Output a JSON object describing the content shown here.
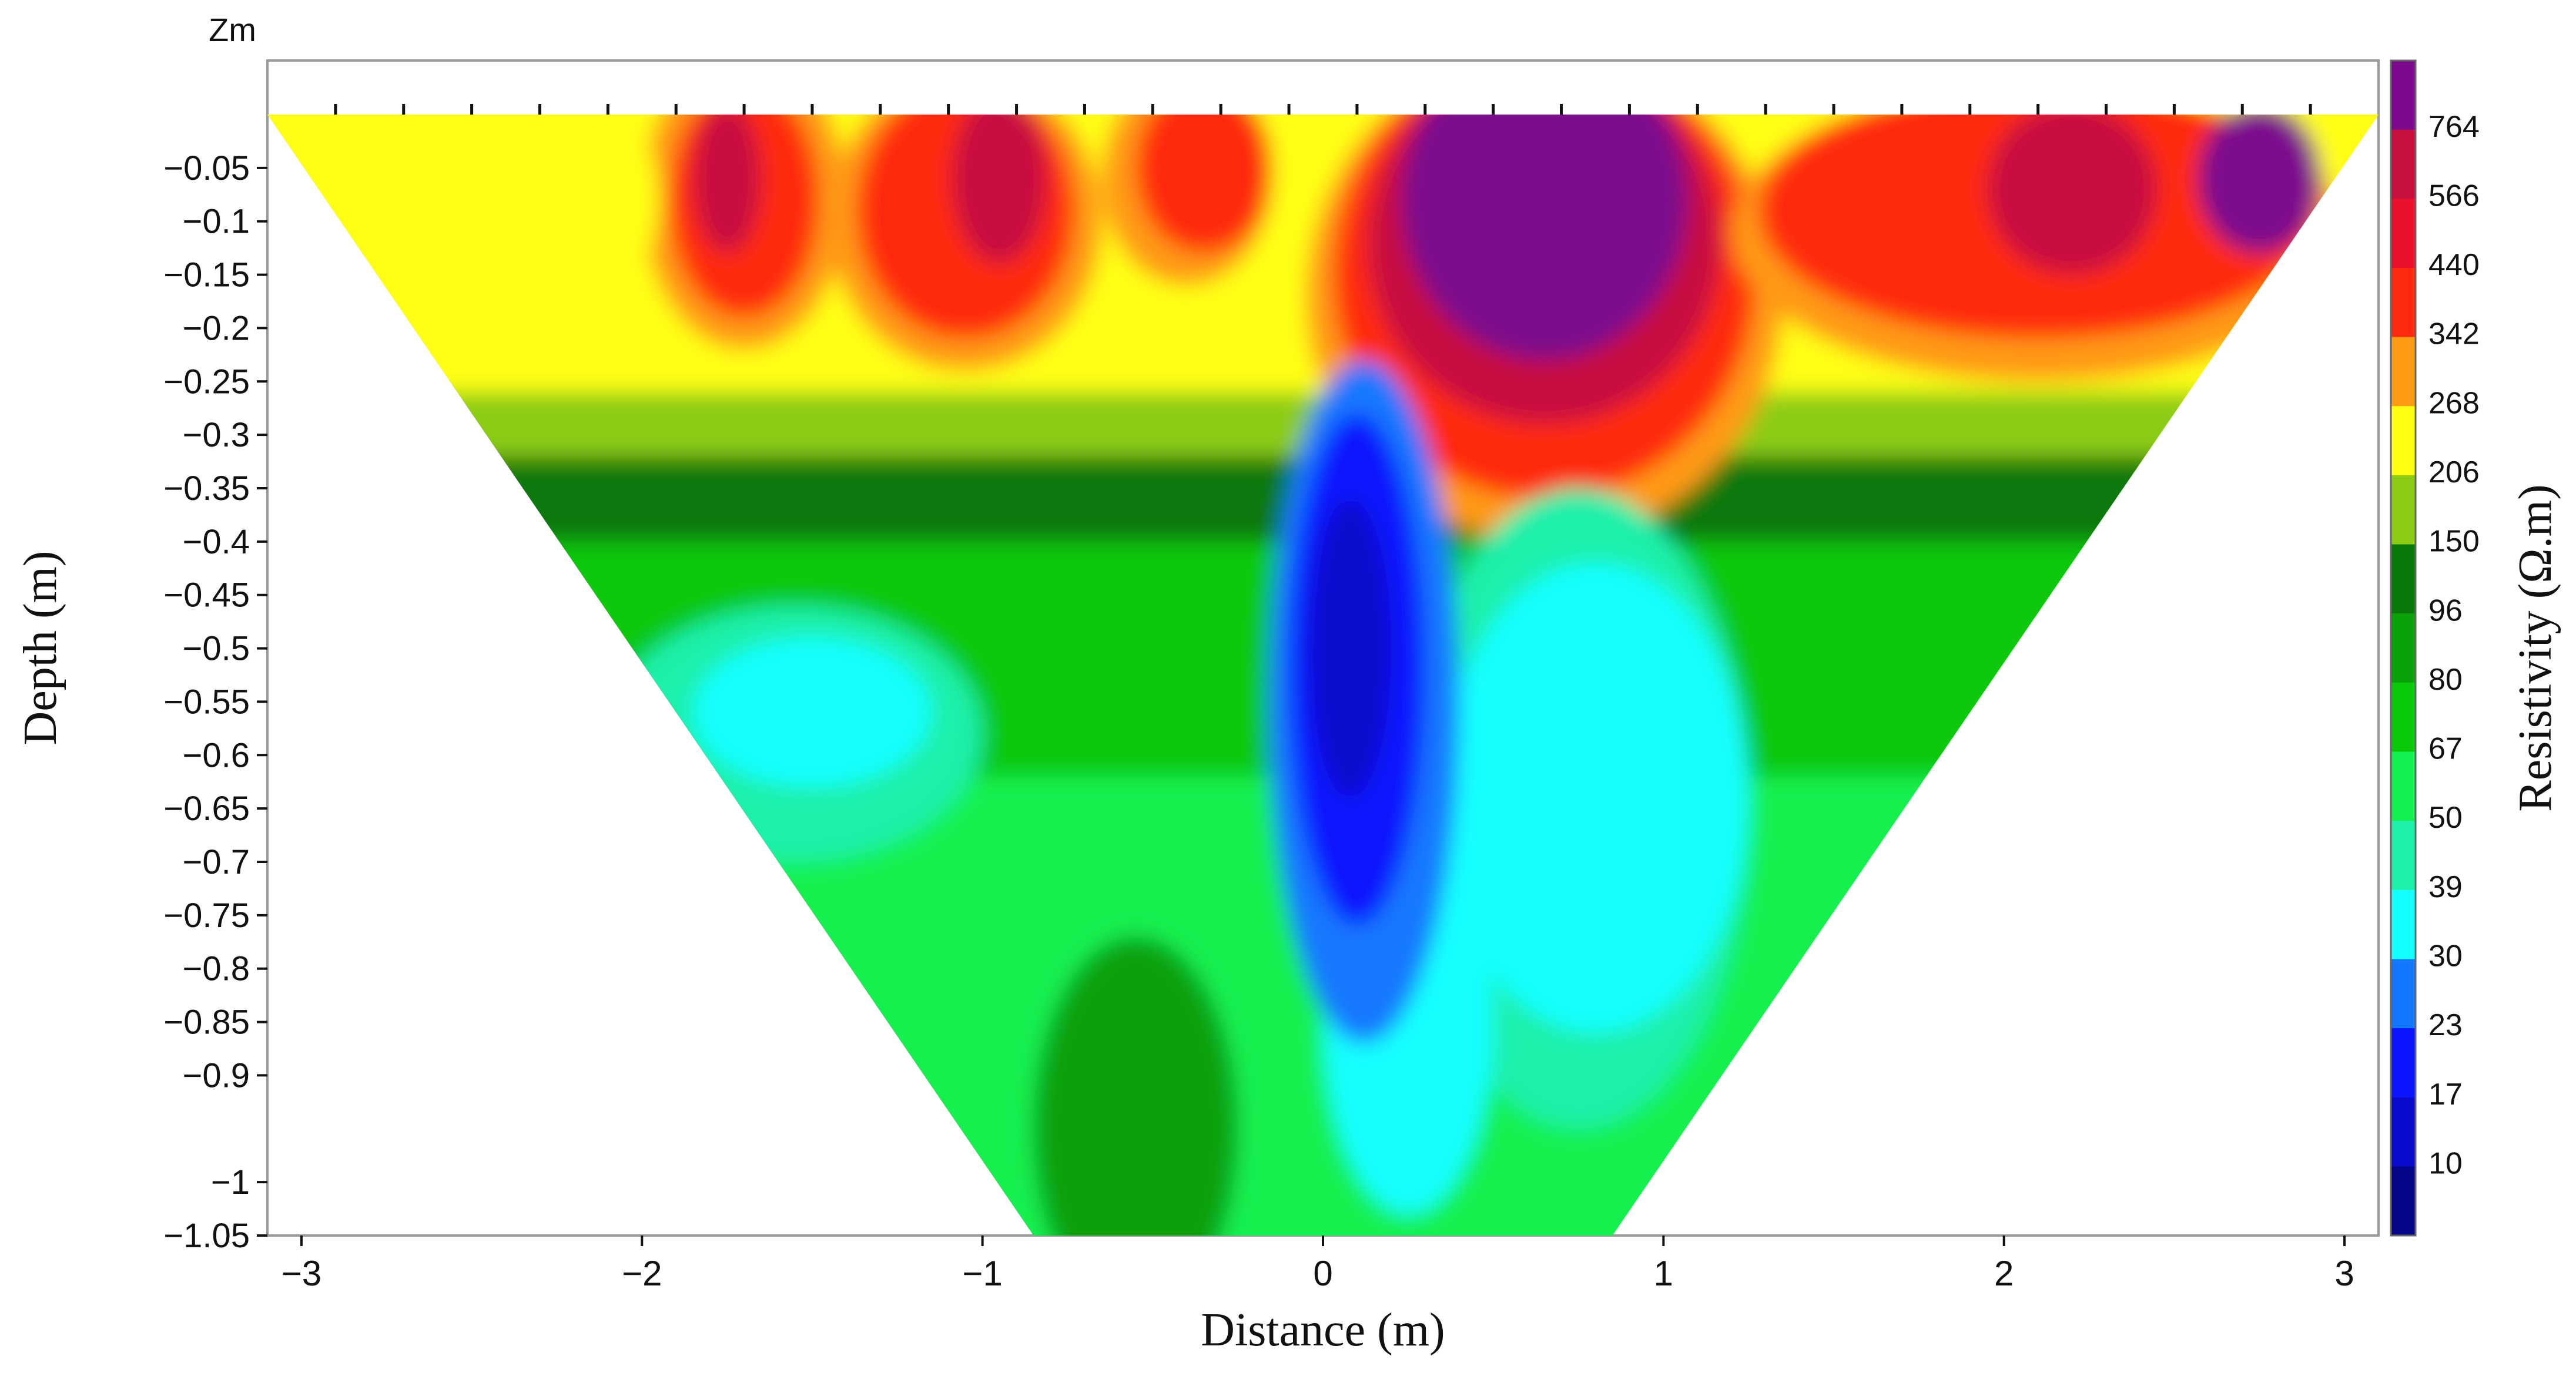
{
  "chart_data": {
    "type": "heatmap",
    "title": "",
    "xlabel": "Distance (m)",
    "ylabel": "Depth (m)",
    "corner_label": "Zm",
    "colorbar_label": "Resistivity (Ω.m)",
    "xlim": [
      -3.1,
      3.1
    ],
    "ylim": [
      -1.05,
      0.0
    ],
    "x_ticks": [
      -3,
      -2,
      -1,
      0,
      1,
      2,
      3
    ],
    "x_tick_labels": [
      "−3",
      "−2",
      "−1",
      "0",
      "1",
      "2",
      "3"
    ],
    "y_ticks": [
      -0.05,
      -0.1,
      -0.15,
      -0.2,
      -0.25,
      -0.3,
      -0.35,
      -0.4,
      -0.45,
      -0.5,
      -0.55,
      -0.6,
      -0.65,
      -0.7,
      -0.75,
      -0.8,
      -0.85,
      -0.9,
      -1,
      -1.05
    ],
    "y_tick_labels": [
      "−0.05",
      "−0.1",
      "−0.15",
      "−0.2",
      "−0.25",
      "−0.3",
      "−0.35",
      "−0.4",
      "−0.45",
      "−0.5",
      "−0.55",
      "−0.6",
      "−0.65",
      "−0.7",
      "−0.75",
      "−0.8",
      "−0.85",
      "−0.9",
      "−1",
      "−1.05"
    ],
    "colorbar_levels": [
      "764",
      "566",
      "440",
      "342",
      "268",
      "206",
      "150",
      "96",
      "80",
      "67",
      "50",
      "39",
      "30",
      "23",
      "17",
      "10"
    ],
    "colorbar_colors": [
      "#7b0a8c",
      "#c8103f",
      "#e8102a",
      "#ff2a10",
      "#ff9a14",
      "#ffff14",
      "#8ccc14",
      "#0a780a",
      "#0aa00a",
      "#0ac80a",
      "#14f050",
      "#1ef0aa",
      "#14ffff",
      "#1478ff",
      "#0a14ff",
      "#0a0acc",
      "#050588"
    ],
    "section_extent": {
      "top": -0.0,
      "bottom": -1.05,
      "top_x_range": [
        -3.1,
        3.1
      ],
      "bottom_x_range": [
        -0.85,
        0.85
      ]
    },
    "electrode_x": [
      -2.9,
      -2.7,
      -2.5,
      -2.3,
      -2.1,
      -1.9,
      -1.7,
      -1.5,
      -1.3,
      -1.1,
      -0.9,
      -0.7,
      -0.5,
      -0.3,
      -0.1,
      0.1,
      0.3,
      0.5,
      0.7,
      0.9,
      1.1,
      1.3,
      1.5,
      1.7,
      1.9,
      2.1,
      2.3,
      2.5,
      2.7,
      2.9
    ]
  }
}
